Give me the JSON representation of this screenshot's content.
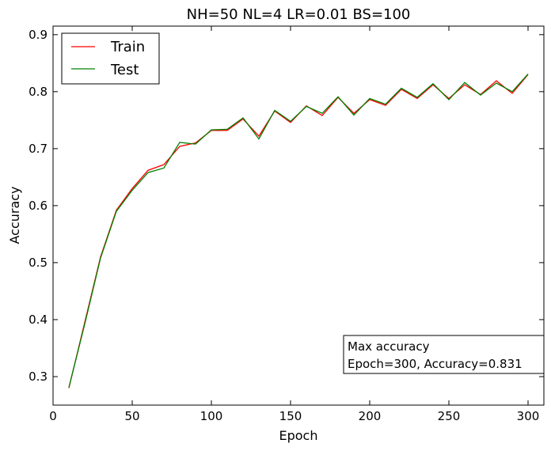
{
  "chart_data": {
    "type": "line",
    "title": "NH=50 NL=4 LR=0.01 BS=100",
    "xlabel": "Epoch",
    "ylabel": "Accuracy",
    "xlim": [
      0,
      310
    ],
    "ylim": [
      0.25,
      0.915
    ],
    "xticks": [
      0,
      50,
      100,
      150,
      200,
      250,
      300
    ],
    "yticks": [
      0.3,
      0.4,
      0.5,
      0.6,
      0.7,
      0.8,
      0.9
    ],
    "xtick_labels": [
      "0",
      "50",
      "100",
      "150",
      "200",
      "250",
      "300"
    ],
    "ytick_labels": [
      "0.3",
      "0.4",
      "0.5",
      "0.6",
      "0.7",
      "0.8",
      "0.9"
    ],
    "grid": false,
    "legend_position": "top-left",
    "x": [
      10,
      20,
      30,
      40,
      50,
      60,
      70,
      80,
      90,
      100,
      110,
      120,
      130,
      140,
      150,
      160,
      170,
      180,
      190,
      200,
      210,
      220,
      230,
      240,
      250,
      260,
      270,
      280,
      290,
      300
    ],
    "series": [
      {
        "name": "Train",
        "color": "#ff0000",
        "values": [
          0.28,
          0.395,
          0.51,
          0.592,
          0.63,
          0.662,
          0.672,
          0.704,
          0.71,
          0.732,
          0.732,
          0.752,
          0.722,
          0.766,
          0.746,
          0.775,
          0.758,
          0.79,
          0.762,
          0.786,
          0.776,
          0.804,
          0.788,
          0.812,
          0.788,
          0.812,
          0.795,
          0.819,
          0.797,
          0.83
        ]
      },
      {
        "name": "Test",
        "color": "#008000",
        "values": [
          0.281,
          0.392,
          0.508,
          0.59,
          0.627,
          0.658,
          0.666,
          0.711,
          0.708,
          0.733,
          0.734,
          0.754,
          0.717,
          0.767,
          0.748,
          0.774,
          0.762,
          0.791,
          0.759,
          0.788,
          0.778,
          0.806,
          0.79,
          0.814,
          0.786,
          0.816,
          0.794,
          0.815,
          0.8,
          0.831
        ]
      }
    ],
    "annotation": {
      "line1": "Max accuracy",
      "line2": "Epoch=300, Accuracy=0.831"
    }
  }
}
